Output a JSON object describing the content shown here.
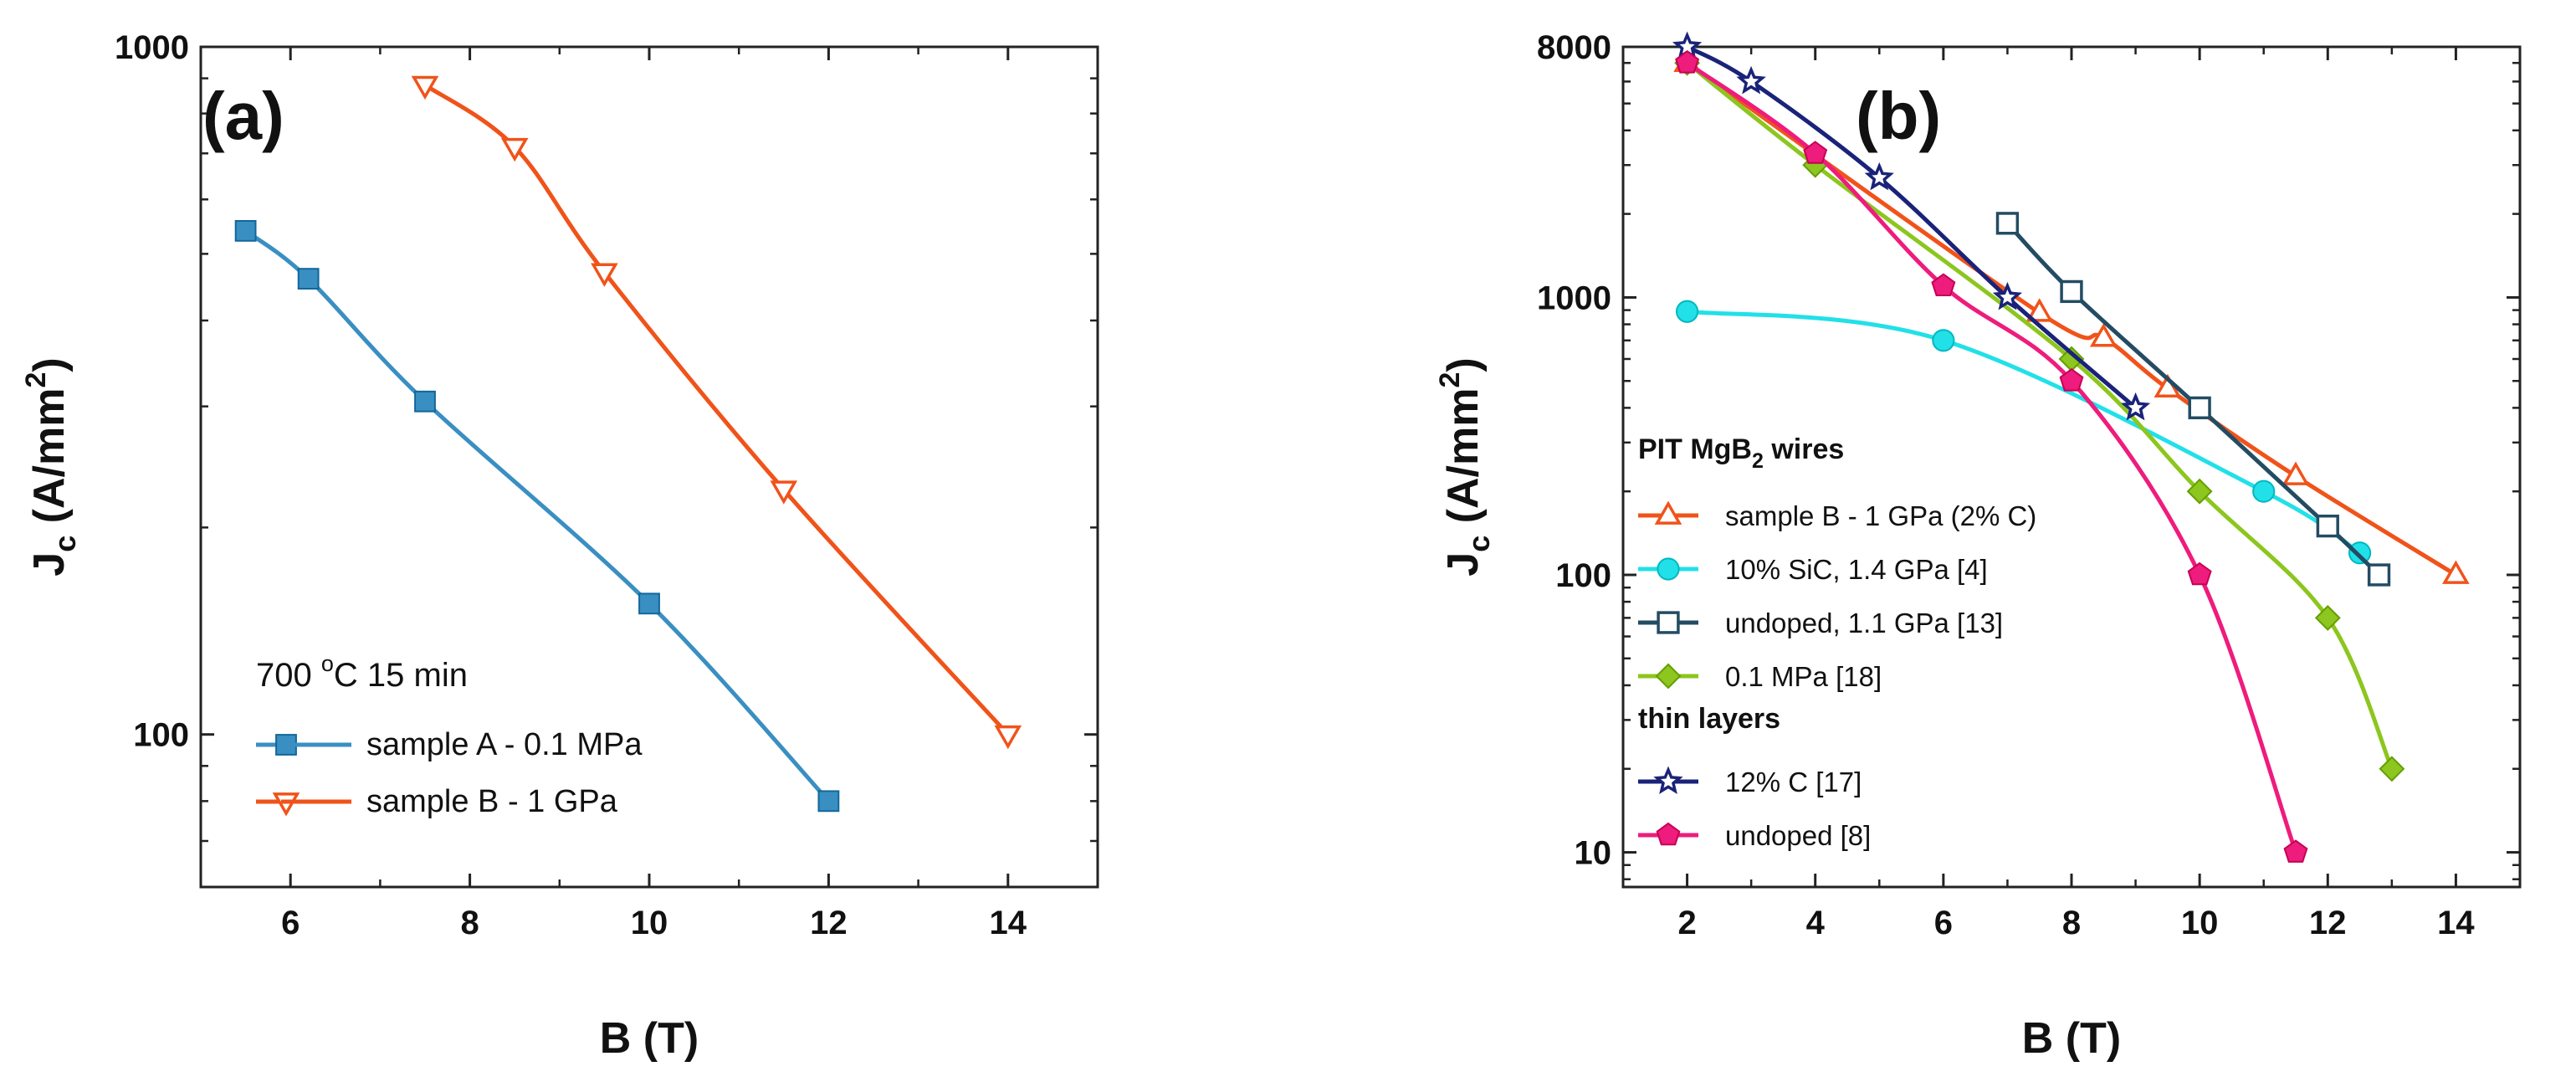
{
  "chart_data": [
    {
      "panel": "(a)",
      "type": "line",
      "xlabel": "B (T)",
      "ylabel_main": "J",
      "ylabel_sub": "c",
      "ylabel_rest": " (A/mm",
      "ylabel_sup": "2",
      "ylabel_end": ")",
      "yscale": "log",
      "xlim": [
        5,
        15
      ],
      "ylim": [
        60,
        1000
      ],
      "xticks": [
        6,
        8,
        10,
        12,
        14
      ],
      "yticks": [
        100,
        1000
      ],
      "ytick_labels": [
        "100",
        "1000"
      ],
      "legend_position": "bottom-left",
      "legend_title": {
        "pre": "700 ",
        "sup": "o",
        "post": "C 15 min"
      },
      "series": [
        {
          "name": "sample A - 0.1 MPa",
          "color": "#3a8fc2",
          "marker": "square",
          "marker_fill": "filled",
          "x": [
            5.5,
            6.2,
            7.5,
            10,
            12
          ],
          "y": [
            540,
            460,
            305,
            155,
            80
          ]
        },
        {
          "name": "sample B - 1 GPa",
          "color": "#f0531a",
          "marker": "triangle-down",
          "marker_fill": "open",
          "x": [
            7.5,
            8.5,
            9.5,
            11.5,
            14
          ],
          "y": [
            880,
            715,
            470,
            227,
            100
          ]
        }
      ]
    },
    {
      "panel": "(b)",
      "type": "line",
      "xlabel": "B (T)",
      "ylabel_main": "J",
      "ylabel_sub": "c",
      "ylabel_rest": " (A/mm",
      "ylabel_sup": "2",
      "ylabel_end": ")",
      "yscale": "log",
      "xlim": [
        1,
        15
      ],
      "ylim": [
        7.5,
        8000
      ],
      "xticks": [
        2,
        4,
        6,
        8,
        10,
        12,
        14
      ],
      "yticks": [
        10,
        100,
        1000,
        8000
      ],
      "ytick_labels": [
        "10",
        "100",
        "1000",
        "8000"
      ],
      "legend_position": "lower-left",
      "legend_groups": [
        {
          "title_pre": "PIT MgB",
          "title_sub": "2",
          "title_post": " wires",
          "series_indices": [
            0,
            1,
            2,
            3
          ]
        },
        {
          "title_pre": "thin layers",
          "title_sub": "",
          "title_post": "",
          "series_indices": [
            4,
            5
          ]
        }
      ],
      "series": [
        {
          "name": "sample B - 1 GPa (2% C)",
          "color": "#f0531a",
          "marker": "triangle-up",
          "marker_fill": "open",
          "x": [
            2,
            7.5,
            8.5,
            9.5,
            11.5,
            14
          ],
          "y": [
            7000,
            880,
            715,
            470,
            227,
            100
          ]
        },
        {
          "name": "10% SiC, 1.4 GPa [4]",
          "color": "#22e0e8",
          "marker": "circle",
          "marker_fill": "filled",
          "x": [
            2,
            6,
            11,
            12.5
          ],
          "y": [
            890,
            700,
            200,
            120
          ]
        },
        {
          "name": "undoped, 1.1 GPa [13]",
          "color": "#234c63",
          "marker": "square",
          "marker_fill": "open",
          "x": [
            7,
            8,
            10,
            12,
            12.8
          ],
          "y": [
            1850,
            1050,
            400,
            150,
            100
          ]
        },
        {
          "name": "0.1 MPa [18]",
          "color": "#8cc61e",
          "marker": "diamond",
          "marker_fill": "filled",
          "x": [
            2,
            4,
            8,
            10,
            12,
            13
          ],
          "y": [
            7000,
            3000,
            600,
            200,
            70,
            20
          ]
        },
        {
          "name": "12% C [17]",
          "color": "#1a2379",
          "marker": "star",
          "marker_fill": "open",
          "x": [
            2,
            3,
            5,
            7,
            9
          ],
          "y": [
            8000,
            6000,
            2700,
            1000,
            400
          ]
        },
        {
          "name": "undoped [8]",
          "color": "#ee1c7c",
          "marker": "pentagon",
          "marker_fill": "filled",
          "x": [
            2,
            4,
            6,
            8,
            10,
            11.5
          ],
          "y": [
            7000,
            3300,
            1100,
            500,
            100,
            10
          ]
        }
      ]
    }
  ]
}
